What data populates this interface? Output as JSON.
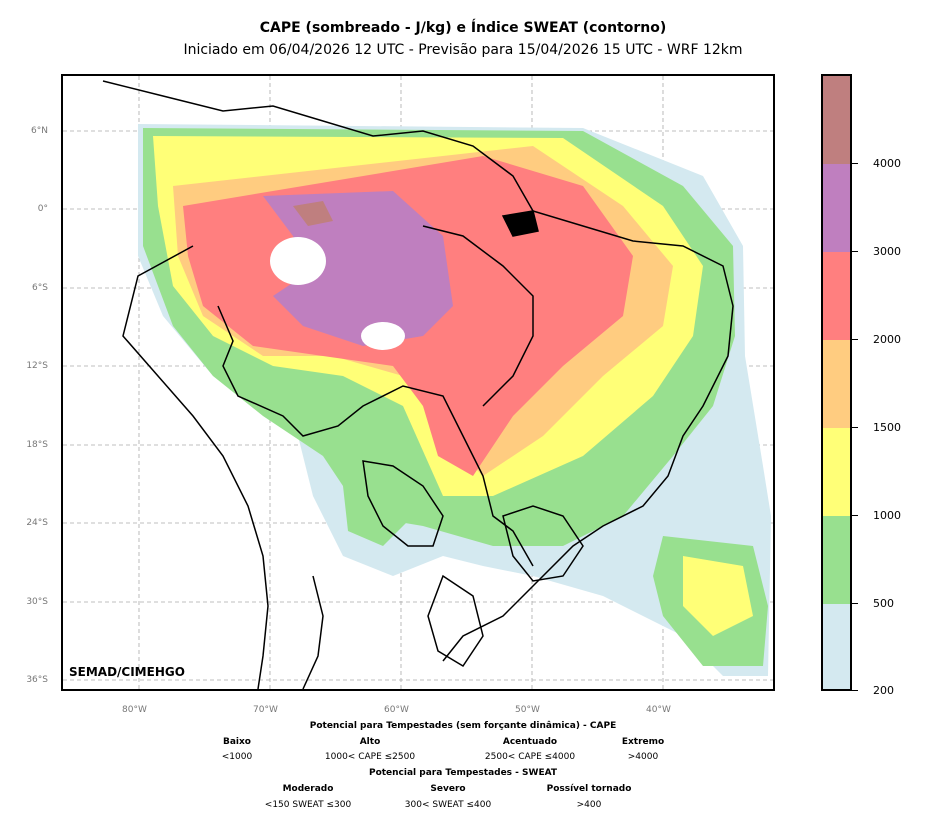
{
  "title": "CAPE (sombreado - J/kg) e Índice SWEAT (contorno)",
  "subtitle": "Iniciado em 06/04/2026 12 UTC - Previsão para 15/04/2026 15 UTC - WRF 12km",
  "credit": "SEMAD/CIMEHGO",
  "lat_labels": [
    "6°N",
    "0°",
    "6°S",
    "12°S",
    "18°S",
    "24°S",
    "30°S",
    "36°S"
  ],
  "lon_labels": [
    "80°W",
    "70°W",
    "60°W",
    "50°W",
    "40°W"
  ],
  "colorbar": {
    "labels": [
      "200",
      "500",
      "1000",
      "1500",
      "2000",
      "3000",
      "4000"
    ],
    "colors": [
      "#d4e9f0",
      "#98e08f",
      "#ffff77",
      "#ffcc80",
      "#ff7f7f",
      "#bf7fbf",
      "#bf7f7f"
    ]
  },
  "legend": {
    "cape_header": "Potencial para Tempestades (sem forçante dinâmica) - CAPE",
    "cape": [
      {
        "label": "Baixo",
        "range": "<1000"
      },
      {
        "label": "Alto",
        "range": "1000< CAPE ≤2500"
      },
      {
        "label": "Acentuado",
        "range": "2500< CAPE ≤4000"
      },
      {
        "label": "Extremo",
        "range": ">4000"
      }
    ],
    "sweat_header": "Potencial para Tempestades - SWEAT",
    "sweat": [
      {
        "label": "Moderado",
        "range": "<150 SWEAT ≤300"
      },
      {
        "label": "Severo",
        "range": "300< SWEAT ≤400"
      },
      {
        "label": "Possível tornado",
        "range": ">400"
      }
    ]
  }
}
